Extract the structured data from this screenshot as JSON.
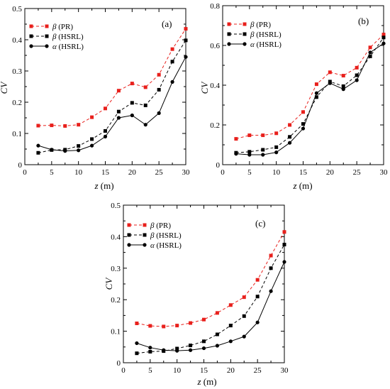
{
  "figure": {
    "colors": {
      "pr": "#e8201c",
      "hsrl": "#000000",
      "frame": "#000000"
    }
  },
  "chart_data": [
    {
      "type": "line",
      "panel_label": "(a)",
      "xlabel_var": "z",
      "xlabel_unit": " (m)",
      "ylabel": "CV",
      "xlim": [
        0,
        30
      ],
      "ylim": [
        0,
        0.5
      ],
      "xticks": [
        0,
        5,
        10,
        15,
        20,
        25,
        30
      ],
      "xtick_labels": [
        "0",
        "5",
        "10",
        "15",
        "20",
        "25",
        "30"
      ],
      "yticks": [
        0,
        0.1,
        0.2,
        0.3,
        0.4,
        0.5
      ],
      "ytick_labels": [
        "0",
        "0.1",
        "0.2",
        "0.3",
        "0.4",
        "0.5"
      ],
      "legend_placement": "top-left",
      "x": [
        2.5,
        5,
        7.5,
        10,
        12.5,
        15,
        17.5,
        20,
        22.5,
        25,
        27.5,
        30
      ],
      "series": [
        {
          "key": "pr",
          "symbol": "β",
          "name": " (PR)",
          "marker": "square",
          "line": "dashed",
          "color": "#e8201c",
          "values": [
            0.125,
            0.126,
            0.124,
            0.128,
            0.152,
            0.18,
            0.237,
            0.26,
            0.248,
            0.288,
            0.37,
            0.435
          ]
        },
        {
          "key": "hsrl_beta",
          "symbol": "β",
          "name": " (HSRL)",
          "marker": "square",
          "line": "dashed",
          "color": "#000000",
          "values": [
            0.038,
            0.047,
            0.048,
            0.06,
            0.082,
            0.108,
            0.17,
            0.198,
            0.19,
            0.24,
            0.33,
            0.398
          ]
        },
        {
          "key": "hsrl_alpha",
          "symbol": "α",
          "name": " (HSRL)",
          "marker": "circle",
          "line": "solid",
          "color": "#000000",
          "values": [
            0.061,
            0.048,
            0.044,
            0.046,
            0.061,
            0.09,
            0.15,
            0.158,
            0.128,
            0.165,
            0.265,
            0.345
          ]
        }
      ]
    },
    {
      "type": "line",
      "panel_label": "(b)",
      "xlabel_var": "z",
      "xlabel_unit": " (m)",
      "ylabel": "CV",
      "xlim": [
        0,
        30
      ],
      "ylim": [
        0,
        0.8
      ],
      "xticks": [
        0,
        5,
        10,
        15,
        20,
        25,
        30
      ],
      "xtick_labels": [
        "0",
        "5",
        "10",
        "15",
        "20",
        "25",
        "30"
      ],
      "yticks": [
        0,
        0.2,
        0.4,
        0.6,
        0.8
      ],
      "ytick_labels": [
        "0",
        "0.2",
        "0.4",
        "0.6",
        "0.8"
      ],
      "legend_placement": "top-left",
      "x": [
        2.5,
        5,
        7.5,
        10,
        12.5,
        15,
        17.5,
        20,
        22.5,
        25,
        27.5,
        30
      ],
      "series": [
        {
          "key": "pr",
          "symbol": "β",
          "name": " (PR)",
          "marker": "square",
          "line": "dashed",
          "color": "#e8201c",
          "values": [
            0.13,
            0.148,
            0.148,
            0.158,
            0.2,
            0.265,
            0.405,
            0.465,
            0.448,
            0.488,
            0.59,
            0.655
          ]
        },
        {
          "key": "hsrl_beta",
          "symbol": "β",
          "name": " (HSRL)",
          "marker": "square",
          "line": "dashed",
          "color": "#000000",
          "values": [
            0.06,
            0.065,
            0.075,
            0.088,
            0.14,
            0.205,
            0.34,
            0.418,
            0.395,
            0.45,
            0.545,
            0.64
          ]
        },
        {
          "key": "hsrl_alpha",
          "symbol": "α",
          "name": " (HSRL)",
          "marker": "circle",
          "line": "solid",
          "color": "#000000",
          "values": [
            0.055,
            0.05,
            0.05,
            0.062,
            0.11,
            0.182,
            0.36,
            0.41,
            0.38,
            0.425,
            0.565,
            0.61
          ]
        }
      ]
    },
    {
      "type": "line",
      "panel_label": "(c)",
      "xlabel_var": "z",
      "xlabel_unit": " (m)",
      "ylabel": "CV",
      "xlim": [
        0,
        30
      ],
      "ylim": [
        0,
        0.5
      ],
      "xticks": [
        0,
        5,
        10,
        15,
        20,
        25,
        30
      ],
      "xtick_labels": [
        "0",
        "5",
        "10",
        "15",
        "20",
        "25",
        "30"
      ],
      "yticks": [
        0,
        0.1,
        0.2,
        0.3,
        0.4,
        0.5
      ],
      "ytick_labels": [
        "0",
        "0.1",
        "0.2",
        "0.3",
        "0.4",
        "0.5"
      ],
      "legend_placement": "top-left",
      "x": [
        2.5,
        5,
        7.5,
        10,
        12.5,
        15,
        17.5,
        20,
        22.5,
        25,
        27.5,
        30
      ],
      "series": [
        {
          "key": "pr",
          "symbol": "β",
          "name": " (PR)",
          "marker": "square",
          "line": "dashed",
          "color": "#e8201c",
          "values": [
            0.125,
            0.117,
            0.115,
            0.118,
            0.126,
            0.137,
            0.158,
            0.183,
            0.208,
            0.263,
            0.34,
            0.415
          ]
        },
        {
          "key": "hsrl_beta",
          "symbol": "β",
          "name": " (HSRL)",
          "marker": "square",
          "line": "dashed",
          "color": "#000000",
          "values": [
            0.03,
            0.035,
            0.037,
            0.045,
            0.055,
            0.068,
            0.09,
            0.118,
            0.148,
            0.21,
            0.3,
            0.375
          ]
        },
        {
          "key": "hsrl_alpha",
          "symbol": "α",
          "name": " (HSRL)",
          "marker": "circle",
          "line": "solid",
          "color": "#000000",
          "values": [
            0.062,
            0.048,
            0.04,
            0.038,
            0.04,
            0.046,
            0.054,
            0.068,
            0.083,
            0.128,
            0.227,
            0.32
          ]
        }
      ]
    }
  ]
}
